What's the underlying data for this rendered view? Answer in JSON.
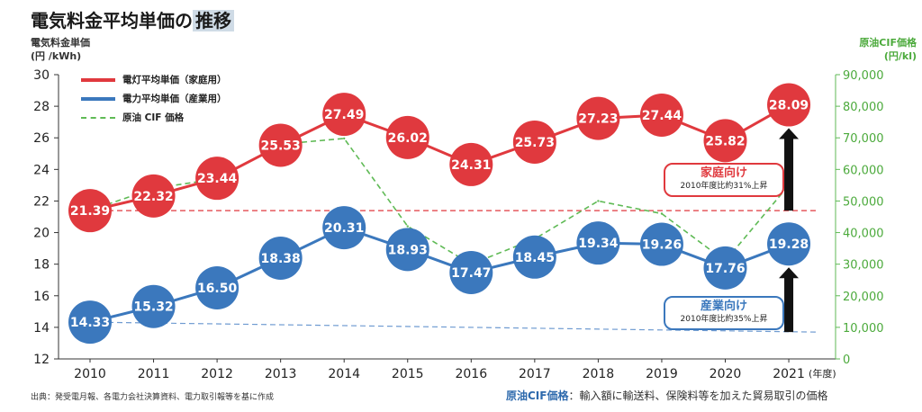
{
  "header": {
    "title_main": "電気料金平均単価の",
    "title_highlight": "推移"
  },
  "left_axis_label": [
    "電気料金単価",
    "(円 /kWh)"
  ],
  "right_axis_label": [
    "原油CIF価格",
    "(円/kl)"
  ],
  "source": "出典：発受電月報、各電力会社決算資料、電力取引報等を基に作成",
  "note": {
    "key": "原油CIF価格",
    "text": "：輸入額に輸送料、保険料等を加えた貿易取引の価格"
  },
  "legend": [
    {
      "label": "電灯平均単価（家庭用）"
    },
    {
      "label": "電力平均単価（産業用）"
    },
    {
      "label": "原油 CIF 価格"
    }
  ],
  "callouts": {
    "household": {
      "title": "家庭向け",
      "sub": "2010年度比約31%上昇"
    },
    "industrial": {
      "title": "産業向け",
      "sub": "2010年度比約35%上昇"
    }
  },
  "colors": {
    "household": "#e0393e",
    "industrial": "#3b78bd",
    "crude": "#5fba55",
    "right_axis_text": "#4caa3c",
    "arrow": "#111111"
  },
  "chart_data": {
    "type": "line",
    "x": [
      2010,
      2011,
      2012,
      2013,
      2014,
      2015,
      2016,
      2017,
      2018,
      2019,
      2020,
      2021
    ],
    "x_tick_labels": [
      "2010",
      "2011",
      "2012",
      "2013",
      "2014",
      "2015",
      "2016",
      "2017",
      "2018",
      "2019",
      "2020",
      "2021"
    ],
    "x_unit": "(年度)",
    "ylim": [
      12,
      30
    ],
    "y_ticks": [
      12,
      14,
      16,
      18,
      20,
      22,
      24,
      26,
      28,
      30
    ],
    "y2lim": [
      0,
      90000
    ],
    "y2_ticks": [
      0,
      10000,
      20000,
      30000,
      40000,
      50000,
      60000,
      70000,
      80000,
      90000
    ],
    "y2_tick_labels": [
      "0",
      "10,000",
      "20,000",
      "30,000",
      "40,000",
      "50,000",
      "60,000",
      "70,000",
      "80,000",
      "90,000"
    ],
    "grid": false,
    "legend_position": "top-left",
    "series": [
      {
        "name": "電灯平均単価（家庭用）",
        "axis": "left",
        "style": "circle-marker-line",
        "values": [
          21.39,
          22.32,
          23.44,
          25.53,
          27.49,
          26.02,
          24.31,
          25.73,
          27.23,
          27.44,
          25.82,
          28.09
        ],
        "labels": [
          "21.39",
          "22.32",
          "23.44",
          "25.53",
          "27.49",
          "26.02",
          "24.31",
          "25.73",
          "27.23",
          "27.44",
          "25.82",
          "28.09"
        ]
      },
      {
        "name": "電力平均単価（産業用）",
        "axis": "left",
        "style": "circle-marker-line",
        "values": [
          14.33,
          15.32,
          16.5,
          18.38,
          20.31,
          18.93,
          17.47,
          18.45,
          19.34,
          19.26,
          17.76,
          19.28
        ],
        "labels": [
          "14.33",
          "15.32",
          "16.50",
          "18.38",
          "20.31",
          "18.93",
          "17.47",
          "18.45",
          "19.34",
          "19.26",
          "17.76",
          "19.28"
        ]
      },
      {
        "name": "原油 CIF 価格",
        "axis": "right",
        "style": "dashed",
        "values": [
          47000,
          54000,
          57000,
          68000,
          69800,
          42000,
          30000,
          38000,
          50000,
          46000,
          31000,
          55000
        ]
      }
    ],
    "reference_lines": [
      {
        "axis": "left",
        "value": 21.39,
        "color": "#e0393e",
        "from_x": 2010,
        "to_x": 2021
      },
      {
        "axis": "left",
        "from_value": 14.33,
        "to_value": 13.7,
        "color": "#6f9bd1",
        "from_x": 2010,
        "to_x": 2021
      }
    ]
  }
}
